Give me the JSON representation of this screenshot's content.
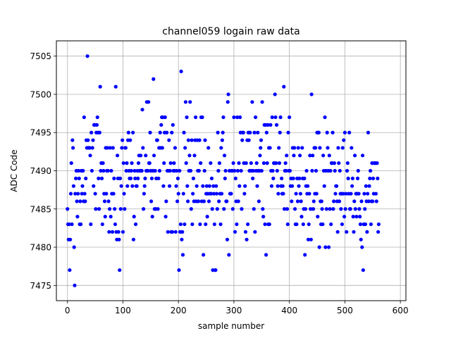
{
  "chart_data": {
    "type": "scatter",
    "title": "channel059 logain raw data",
    "xlabel": "sample number",
    "ylabel": "ADC Code",
    "xlim": [
      -20,
      610
    ],
    "ylim": [
      7473,
      7507
    ],
    "xticks": [
      0,
      100,
      200,
      300,
      400,
      500,
      600
    ],
    "yticks": [
      7475,
      7480,
      7485,
      7490,
      7495,
      7500,
      7505
    ],
    "grid": true,
    "marker_color": "#0000ff",
    "series": [
      {
        "y": [
          7485,
          7483,
          7481,
          7483,
          7477,
          7481,
          7487,
          7491,
          7483,
          7494,
          7493,
          7488,
          7480,
          7475,
          7487,
          7489,
          7490,
          7486,
          7484,
          7487,
          7490,
          7489,
          7483,
          7486,
          7483,
          7490,
          7487,
          7488,
          7490,
          7486,
          7497,
          7487,
          7486,
          7489,
          7494,
          7493,
          7505,
          7494,
          7493,
          7493,
          7493,
          7492,
          7483,
          7495,
          7490,
          7493,
          7494,
          7488,
          7496,
          7496,
          7487,
          7485,
          7495,
          7496,
          7497,
          7495,
          7489,
          7485,
          7495,
          7501,
          7490,
          7491,
          7489,
          7483,
          7491,
          7490,
          7487,
          7486,
          7484,
          7493,
          7487,
          7490,
          7493,
          7490,
          7486,
          7482,
          7485,
          7493,
          7484,
          7490,
          7487,
          7482,
          7493,
          7487,
          7489,
          7485,
          7483,
          7501,
          7482,
          7481,
          7492,
          7489,
          7482,
          7481,
          7477,
          7489,
          7485,
          7488,
          7493,
          7494,
          7482,
          7491,
          7487,
          7485,
          7493,
          7493,
          7490,
          7491,
          7488,
          7494,
          7495,
          7490,
          7489,
          7494,
          7489,
          7490,
          7491,
          7488,
          7495,
          7481,
          7484,
          7490,
          7489,
          7483,
          7488,
          7488,
          7490,
          7489,
          7491,
          7492,
          7490,
          7490,
          7492,
          7490,
          7490,
          7498,
          7493,
          7485,
          7487,
          7488,
          7489,
          7492,
          7490,
          7499,
          7490,
          7490,
          7499,
          7491,
          7491,
          7495,
          7490,
          7486,
          7489,
          7484,
          7490,
          7502,
          7492,
          7485,
          7490,
          7485,
          7489,
          7494,
          7494,
          7485,
          7489,
          7493,
          7490,
          7495,
          7493,
          7496,
          7497,
          7493,
          7497,
          7488,
          7491,
          7495,
          7497,
          7484,
          7486,
          7495,
          7490,
          7482,
          7490,
          7494,
          7488,
          7490,
          7491,
          7482,
          7495,
          7482,
          7496,
          7490,
          7491,
          7490,
          7493,
          7482,
          7488,
          7490,
          7486,
          7489,
          7487,
          7477,
          7490,
          7482,
          7483,
          7503,
          7481,
          7482,
          7479,
          7487,
          7495,
          7483,
          7493,
          7499,
          7491,
          7497,
          7488,
          7486,
          7494,
          7490,
          7492,
          7499,
          7490,
          7485,
          7494,
          7483,
          7487,
          7489,
          7486,
          7492,
          7494,
          7497,
          7486,
          7488,
          7494,
          7490,
          7486,
          7490,
          7494,
          7483,
          7491,
          7497,
          7486,
          7497,
          7488,
          7479,
          7486,
          7490,
          7494,
          7483,
          7487,
          7488,
          7484,
          7487,
          7493,
          7486,
          7488,
          7487,
          7491,
          7487,
          7489,
          7485,
          7477,
          7488,
          7487,
          7483,
          7477,
          7477,
          7488,
          7487,
          7485,
          7495,
          7490,
          7486,
          7491,
          7487,
          7483,
          7493,
          7487,
          7494,
          7495,
          7497,
          7485,
          7492,
          7489,
          7490,
          7486,
          7486,
          7481,
          7499,
          7500,
          7479,
          7490,
          7487,
          7487,
          7487,
          7490,
          7490,
          7485,
          7491,
          7497,
          7490,
          7482,
          7489,
          7486,
          7483,
          7497,
          7490,
          7486,
          7491,
          7488,
          7497,
          7495,
          7490,
          7485,
          7494,
          7495,
          7495,
          7491,
          7487,
          7488,
          7482,
          7491,
          7481,
          7494,
          7483,
          7495,
          7494,
          7490,
          7495,
          7490,
          7491,
          7490,
          7499,
          7489,
          7490,
          7485,
          7495,
          7482,
          7497,
          7490,
          7491,
          7488,
          7495,
          7490,
          7486,
          7490,
          7492,
          7493,
          7494,
          7490,
          7499,
          7485,
          7484,
          7491,
          7496,
          7483,
          7496,
          7479,
          7495,
          7491,
          7496,
          7483,
          7493,
          7483,
          7493,
          7496,
          7490,
          7488,
          7497,
          7490,
          7489,
          7491,
          7491,
          7500,
          7497,
          7491,
          7496,
          7490,
          7488,
          7487,
          7493,
          7491,
          7495,
          7497,
          7488,
          7489,
          7487,
          7488,
          7487,
          7501,
          7485,
          7490,
          7491,
          7490,
          7492,
          7485,
          7483,
          7495,
          7490,
          7497,
          7490,
          7488,
          7489,
          7486,
          7488,
          7493,
          7489,
          7492,
          7493,
          7485,
          7483,
          7487,
          7483,
          7489,
          7486,
          7493,
          7488,
          7489,
          7492,
          7487,
          7486,
          7484,
          7493,
          7489,
          7483,
          7485,
          7489,
          7479,
          7485,
          7488,
          7490,
          7487,
          7488,
          7481,
          7483,
          7487,
          7492,
          7485,
          7481,
          7500,
          7490,
          7492,
          7485,
          7486,
          7493,
          7487,
          7493,
          7490,
          7487,
          7495,
          7484,
          7495,
          7495,
          7480,
          7493,
          7486,
          7483,
          7486,
          7485,
          7483,
          7492,
          7490,
          7488,
          7497,
          7480,
          7490,
          7485,
          7495,
          7493,
          7490,
          7480,
          7492,
          7485,
          7490,
          7483,
          7491,
          7491,
          7495,
          7485,
          7486,
          7491,
          7490,
          7487,
          7488,
          7488,
          7486,
          7482,
          7493,
          7491,
          7486,
          7490,
          7487,
          7485,
          7487,
          7483,
          7493,
          7487,
          7494,
          7484,
          7495,
          7485,
          7487,
          7482,
          7490,
          7491,
          7489,
          7487,
          7495,
          7485,
          7485,
          7487,
          7493,
          7488,
          7489,
          7484,
          7482,
          7486,
          7492,
          7485,
          7487,
          7484,
          7487,
          7489,
          7490,
          7487,
          7485,
          7484,
          7483,
          7481,
          7486,
          7480,
          7492,
          7477,
          7483,
          7487,
          7485,
          7483,
          7488,
          7486,
          7482,
          7487,
          7495,
          7486,
          7488,
          7489,
          7490,
          7483,
          7486,
          7491,
          7486,
          7489,
          7487,
          7491,
          7491,
          7491,
          7487,
          7486,
          7491,
          7489,
          7482,
          7483
        ]
      }
    ]
  }
}
